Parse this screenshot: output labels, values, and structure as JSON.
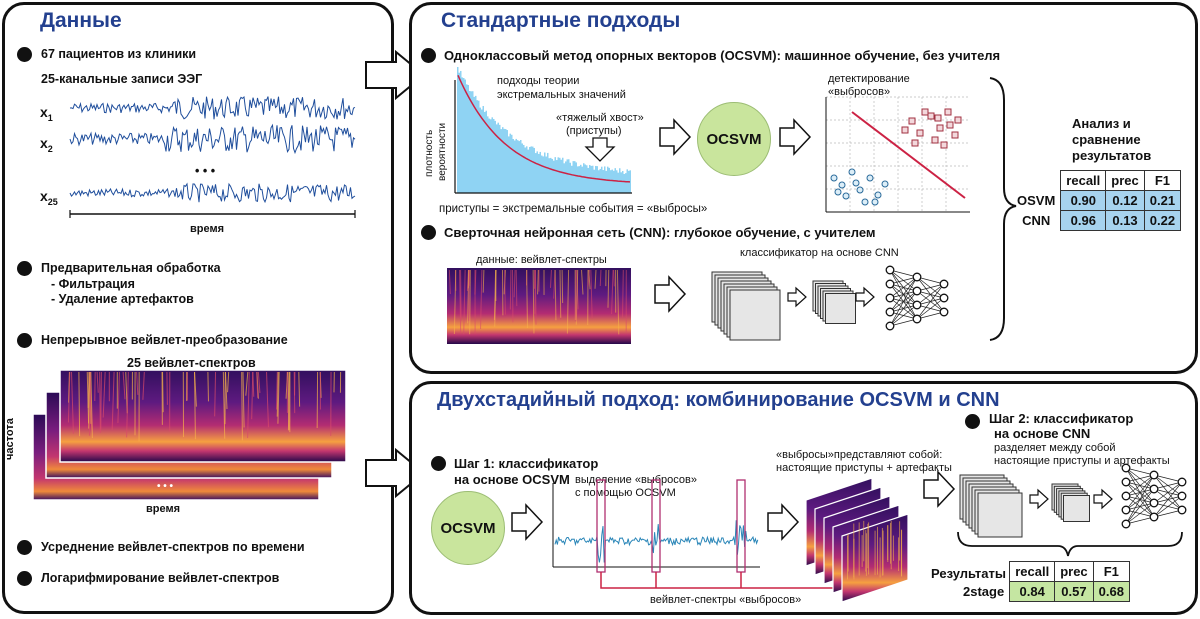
{
  "left": {
    "title": "Данные",
    "patients": "67 пациентов из клиники",
    "channels": "25-канальные записи ЭЭГ",
    "x1": "x",
    "x1_sub": "1",
    "x2": "x",
    "x2_sub": "2",
    "x25": "x",
    "x25_sub": "25",
    "ellipsis": "• • •",
    "time_label": "время",
    "preproc": "Предварительная обработка",
    "filter": "- Фильтрация",
    "artifacts": "- Удаление артефактов",
    "cwt": "Непрерывное вейвлет-преобразование",
    "spectra25": "25 вейвлет-спектров",
    "freq_label": "частота",
    "time_label2": "время",
    "ellipsis2": "• • •",
    "averaging": "Усреднение вейвлет-спектров по времени",
    "log": "Логарифмирование вейвлет-спектров"
  },
  "standard": {
    "title": "Стандартные подходы",
    "ocsvm_heading": "Одноклассовый метод опорных векторов (OCSVM): машинное обучение, без учителя",
    "evt1": "подходы теории",
    "evt2": "экстремальных значений",
    "heavy1": "«тяжелый хвост»",
    "heavy2": "(приступы)",
    "density1": "плотность",
    "density2": "вероятности",
    "equation": "приступы = экстремальные события = «выбросы»",
    "ocsvm_label": "OCSVM",
    "detect1": "детектирование",
    "detect2": "«выбросов»",
    "cnn_heading": "Сверточная нейронная сеть (CNN): глубокое обучение, с учителем",
    "data_label": "данные: вейвлет-спектры",
    "classifier_label": "классификатор на основе CNN"
  },
  "analysis": {
    "title1": "Анализ и",
    "title2": "сравнение",
    "title3": "результатов",
    "headers": [
      "recall",
      "prec",
      "F1"
    ],
    "rows": [
      {
        "name": "OSVM",
        "recall": "0.90",
        "prec": "0.12",
        "f1": "0.21"
      },
      {
        "name": "CNN",
        "recall": "0.96",
        "prec": "0.13",
        "f1": "0.22"
      }
    ]
  },
  "twostage": {
    "title": "Двухстадийный подход: комбинирование OCSVM и CNN",
    "step1a": "Шаг 1: классификатор",
    "step1b": "на основе OCSVM",
    "ocsvm_label": "OCSVM",
    "select1": "выделение «выбросов»",
    "select2": "с помощью OCSVM",
    "outliers1": "«выбросы»представляют собой:",
    "outliers2": "настоящие приступы + артефакты",
    "step2a": "Шаг 2: классификатор",
    "step2b": "на основе CNN",
    "step2c": "разделяет между собой",
    "step2d": "настоящие приступы и артефакты",
    "spectra_label": "вейвлет-спектры «выбросов»",
    "results_label": "Результаты",
    "headers": [
      "recall",
      "prec",
      "F1"
    ],
    "row": {
      "name": "2stage",
      "recall": "0.84",
      "prec": "0.57",
      "f1": "0.68"
    }
  },
  "colors": {
    "title": "#23408f",
    "hist": "#8fd3f3",
    "signal": "#1f4e9c",
    "red": "#cc2244",
    "green_circle": "#c9e59d",
    "table_blue": "#a7d3ee",
    "table_green": "#c5e6a2"
  }
}
